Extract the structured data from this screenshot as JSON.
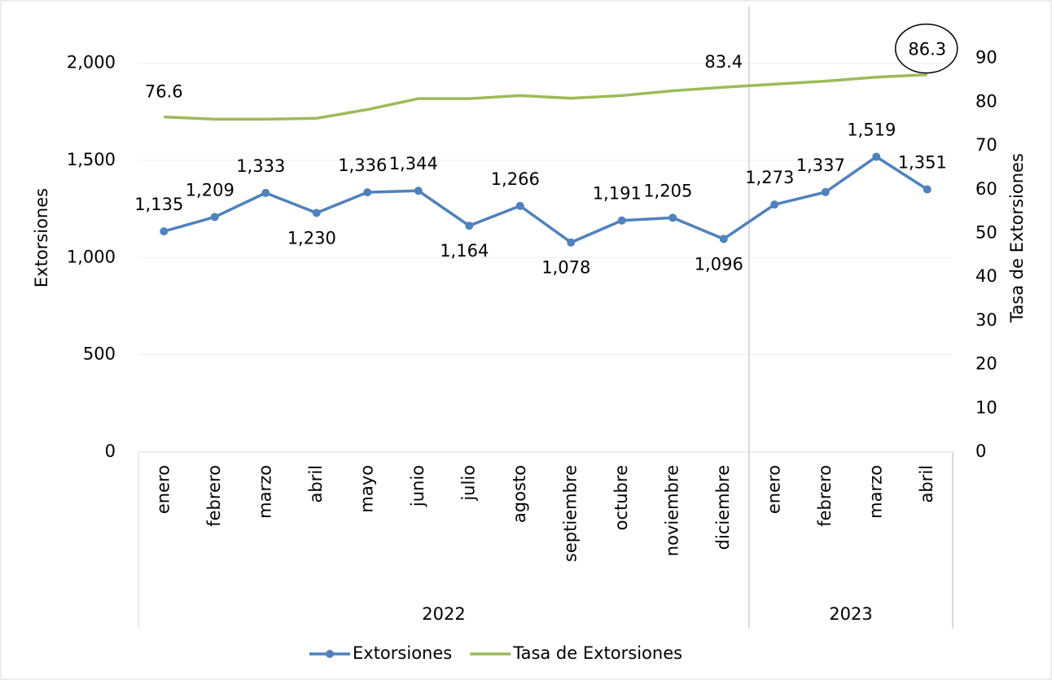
{
  "chart_data": {
    "type": "line",
    "y_label": "Extorsiones",
    "y2_label": "Tasa de Extorsiones",
    "categories": [
      "enero",
      "febrero",
      "marzo",
      "abril",
      "mayo",
      "junio",
      "julio",
      "agosto",
      "septiembre",
      "octubre",
      "noviembre",
      "diciembre",
      "enero",
      "febrero",
      "marzo",
      "abril"
    ],
    "groups": [
      {
        "label": "2022",
        "count": 12
      },
      {
        "label": "2023",
        "count": 4
      }
    ],
    "series": [
      {
        "name": "Extorsiones",
        "color": "#4f81bd",
        "markers": true,
        "values": [
          1135,
          1209,
          1333,
          1230,
          1336,
          1344,
          1164,
          1266,
          1078,
          1191,
          1205,
          1096,
          1273,
          1337,
          1519,
          1351
        ],
        "value_labels": [
          "1,135",
          "1,209",
          "1,333",
          "1,230",
          "1,336",
          "1,344",
          "1,164",
          "1,266",
          "1,078",
          "1,191",
          "1,205",
          "1,096",
          "1,273",
          "1,337",
          "1,519",
          "1,351"
        ]
      },
      {
        "name": "Tasa de Extorsiones",
        "color": "#9bbb59",
        "axis": "y2",
        "markers": false,
        "values": [
          76.6,
          76.1,
          76.1,
          76.3,
          78.3,
          80.8,
          80.8,
          81.5,
          80.9,
          81.5,
          82.6,
          83.4,
          84.1,
          84.8,
          85.7,
          86.3
        ],
        "value_labels": [
          "76.6",
          null,
          null,
          null,
          null,
          null,
          null,
          null,
          null,
          null,
          null,
          "83.4",
          null,
          null,
          null,
          "86.3"
        ]
      }
    ],
    "ylim": [
      0,
      2250
    ],
    "yticks": [
      0,
      {
        "value": 500,
        "label": "500"
      },
      {
        "value": 1000,
        "label": "1,000"
      },
      {
        "value": 1500,
        "label": "1,500"
      },
      {
        "value": 2000,
        "label": "2,000"
      }
    ],
    "y2lim": [
      0,
      100
    ],
    "y2ticks": [
      0,
      10,
      20,
      30,
      40,
      50,
      60,
      70,
      80,
      90
    ],
    "grid": true,
    "legend": "bottom"
  }
}
